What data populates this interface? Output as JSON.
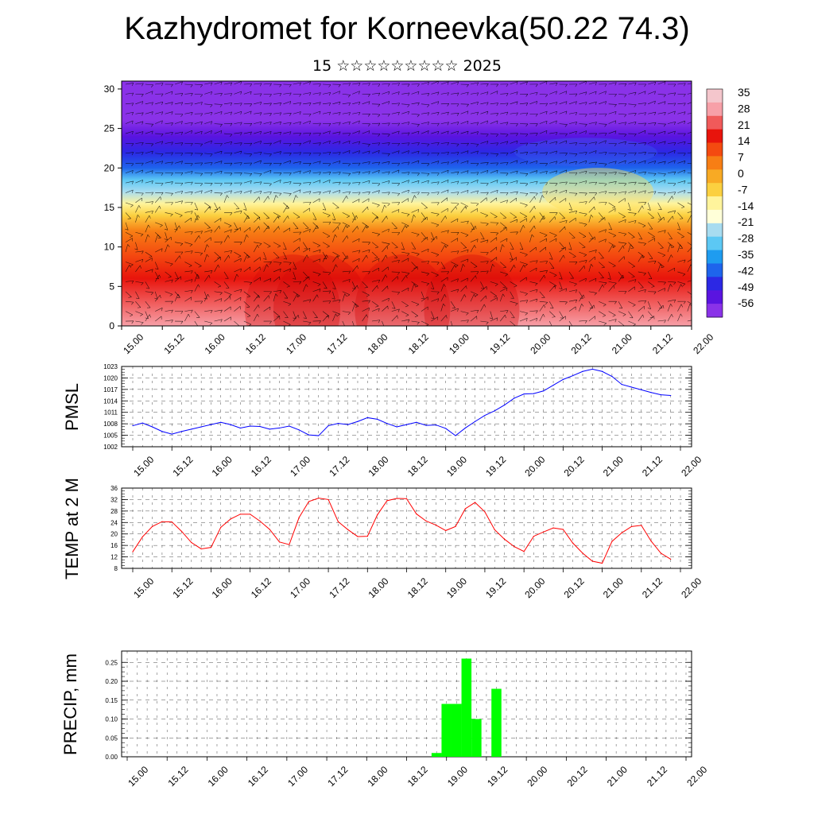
{
  "header": {
    "title": "Kazhydromet for Korneevka(50.22 74.3)",
    "subtitle": "15 ☆☆☆☆☆☆☆☆☆ 2025"
  },
  "time_labels": [
    "15.00",
    "15.12",
    "16.00",
    "16.12",
    "17.00",
    "17.12",
    "18.00",
    "18.12",
    "19.00",
    "19.12",
    "20.00",
    "20.12",
    "21.00",
    "21.12",
    "22.00"
  ],
  "chart_data": [
    {
      "type": "heatmap",
      "xlabel": "",
      "ylabel": "",
      "x_ticks": [
        "15.00",
        "15.12",
        "16.00",
        "16.12",
        "17.00",
        "17.12",
        "18.00",
        "18.12",
        "19.00",
        "19.12",
        "20.00",
        "20.12",
        "21.00",
        "21.12",
        "22.00"
      ],
      "y_ticks": [
        0,
        5,
        10,
        15,
        20,
        25,
        30
      ],
      "ylim": [
        0,
        31
      ],
      "colorbar": {
        "ticks": [
          35,
          28,
          21,
          14,
          7,
          0,
          -7,
          -14,
          -21,
          -28,
          -35,
          -42,
          -49,
          -56
        ],
        "colors": [
          "#f4c6cc",
          "#f7a0a8",
          "#f05a5a",
          "#e8140c",
          "#f44a10",
          "#f77e14",
          "#f8aa24",
          "#fbd040",
          "#fff49c",
          "#ffffd8",
          "#a8dcf0",
          "#5cc8f4",
          "#1e9cf0",
          "#1e64ec",
          "#2c28e4",
          "#5a14e0",
          "#8a32e8"
        ]
      },
      "temperature_profile": {
        "levels": [
          0,
          3,
          6,
          9,
          12,
          14,
          15.5,
          17,
          18.5,
          20,
          22,
          24,
          26,
          28,
          31
        ],
        "values": [
          30,
          26,
          19,
          12,
          4,
          -3,
          -10,
          -20,
          -30,
          -38,
          -44,
          -50,
          -55,
          -58,
          -59
        ]
      }
    },
    {
      "type": "line",
      "ylabel": "PMSL",
      "yticks": [
        1002,
        1005,
        1008,
        1011,
        1014,
        1017,
        1020,
        1023
      ],
      "ylim": [
        1002,
        1023
      ],
      "series": [
        {
          "color": "#0000ff",
          "x": [
            0.0,
            0.25,
            0.5,
            0.75,
            1.0,
            1.25,
            1.5,
            1.75,
            2.0,
            2.25,
            2.5,
            2.75,
            3.0,
            3.25,
            3.5,
            3.75,
            4.0,
            4.25,
            4.5,
            4.75,
            5.0,
            5.25,
            5.5,
            5.75,
            6.0,
            6.25,
            6.5,
            6.75,
            7.0,
            7.25,
            7.5,
            7.75,
            8.0,
            8.25,
            8.5,
            8.75,
            9.0,
            9.25,
            9.5,
            9.75,
            10.0,
            10.25,
            10.5,
            10.75,
            11.0,
            11.25,
            11.5,
            11.75,
            12.0,
            12.25,
            12.5,
            12.75,
            13.0,
            13.25,
            13.5,
            13.75
          ],
          "values": [
            1007.5,
            1008.2,
            1007.2,
            1006.0,
            1005.3,
            1006.0,
            1006.6,
            1007.2,
            1007.8,
            1008.4,
            1007.8,
            1006.9,
            1007.4,
            1007.3,
            1006.6,
            1006.9,
            1007.4,
            1006.4,
            1005.1,
            1004.9,
            1007.5,
            1008.1,
            1007.8,
            1008.6,
            1009.6,
            1009.2,
            1008.1,
            1007.2,
            1007.8,
            1008.4,
            1007.6,
            1007.7,
            1006.8,
            1004.9,
            1006.9,
            1008.6,
            1010.2,
            1011.4,
            1012.9,
            1014.7,
            1015.8,
            1015.9,
            1016.6,
            1018.1,
            1019.6,
            1020.6,
            1021.7,
            1022.3,
            1021.7,
            1020.4,
            1018.3,
            1017.6,
            1016.9,
            1016.2,
            1015.6,
            1015.4
          ]
        }
      ]
    },
    {
      "type": "line",
      "ylabel": "TEMP at 2 M",
      "yticks": [
        8,
        12,
        16,
        20,
        24,
        28,
        32,
        36
      ],
      "ylim": [
        8,
        36
      ],
      "series": [
        {
          "color": "#ff0000",
          "x": [
            0.0,
            0.25,
            0.5,
            0.75,
            1.0,
            1.25,
            1.5,
            1.75,
            2.0,
            2.25,
            2.5,
            2.75,
            3.0,
            3.25,
            3.5,
            3.75,
            4.0,
            4.25,
            4.5,
            4.75,
            5.0,
            5.25,
            5.5,
            5.75,
            6.0,
            6.25,
            6.5,
            6.75,
            7.0,
            7.25,
            7.5,
            7.75,
            8.0,
            8.25,
            8.5,
            8.75,
            9.0,
            9.25,
            9.5,
            9.75,
            10.0,
            10.25,
            10.5,
            10.75,
            11.0,
            11.25,
            11.5,
            11.75,
            12.0,
            12.25,
            12.5,
            12.75,
            13.0,
            13.25,
            13.5,
            13.75
          ],
          "values": [
            13.8,
            19.0,
            22.6,
            24.3,
            24.2,
            20.9,
            17.0,
            14.8,
            15.3,
            22.3,
            25.2,
            26.9,
            26.9,
            24.5,
            21.6,
            17.2,
            16.3,
            25.7,
            31.3,
            32.5,
            32.0,
            24.3,
            21.5,
            19.1,
            19.2,
            26.6,
            31.6,
            32.4,
            32.3,
            27.0,
            24.5,
            23.1,
            21.2,
            22.6,
            28.8,
            31.0,
            27.7,
            21.5,
            18.2,
            15.6,
            13.9,
            19.2,
            20.7,
            22.1,
            21.6,
            16.8,
            13.3,
            10.5,
            9.8,
            17.4,
            20.4,
            22.6,
            23.0,
            17.5,
            13.3,
            11.2
          ]
        }
      ]
    },
    {
      "type": "bar",
      "ylabel": "PRECIP, mm",
      "yticks": [
        "0.00",
        "0.05",
        "0.10",
        "0.15",
        "0.20",
        "0.25"
      ],
      "ylim": [
        0,
        0.28
      ],
      "bars": [
        {
          "x": 7.75,
          "value": 0.01
        },
        {
          "x": 8.0,
          "value": 0.14
        },
        {
          "x": 8.25,
          "value": 0.14
        },
        {
          "x": 8.5,
          "value": 0.26
        },
        {
          "x": 8.75,
          "value": 0.1
        },
        {
          "x": 9.25,
          "value": 0.18
        }
      ],
      "color": "#00ff00"
    }
  ]
}
